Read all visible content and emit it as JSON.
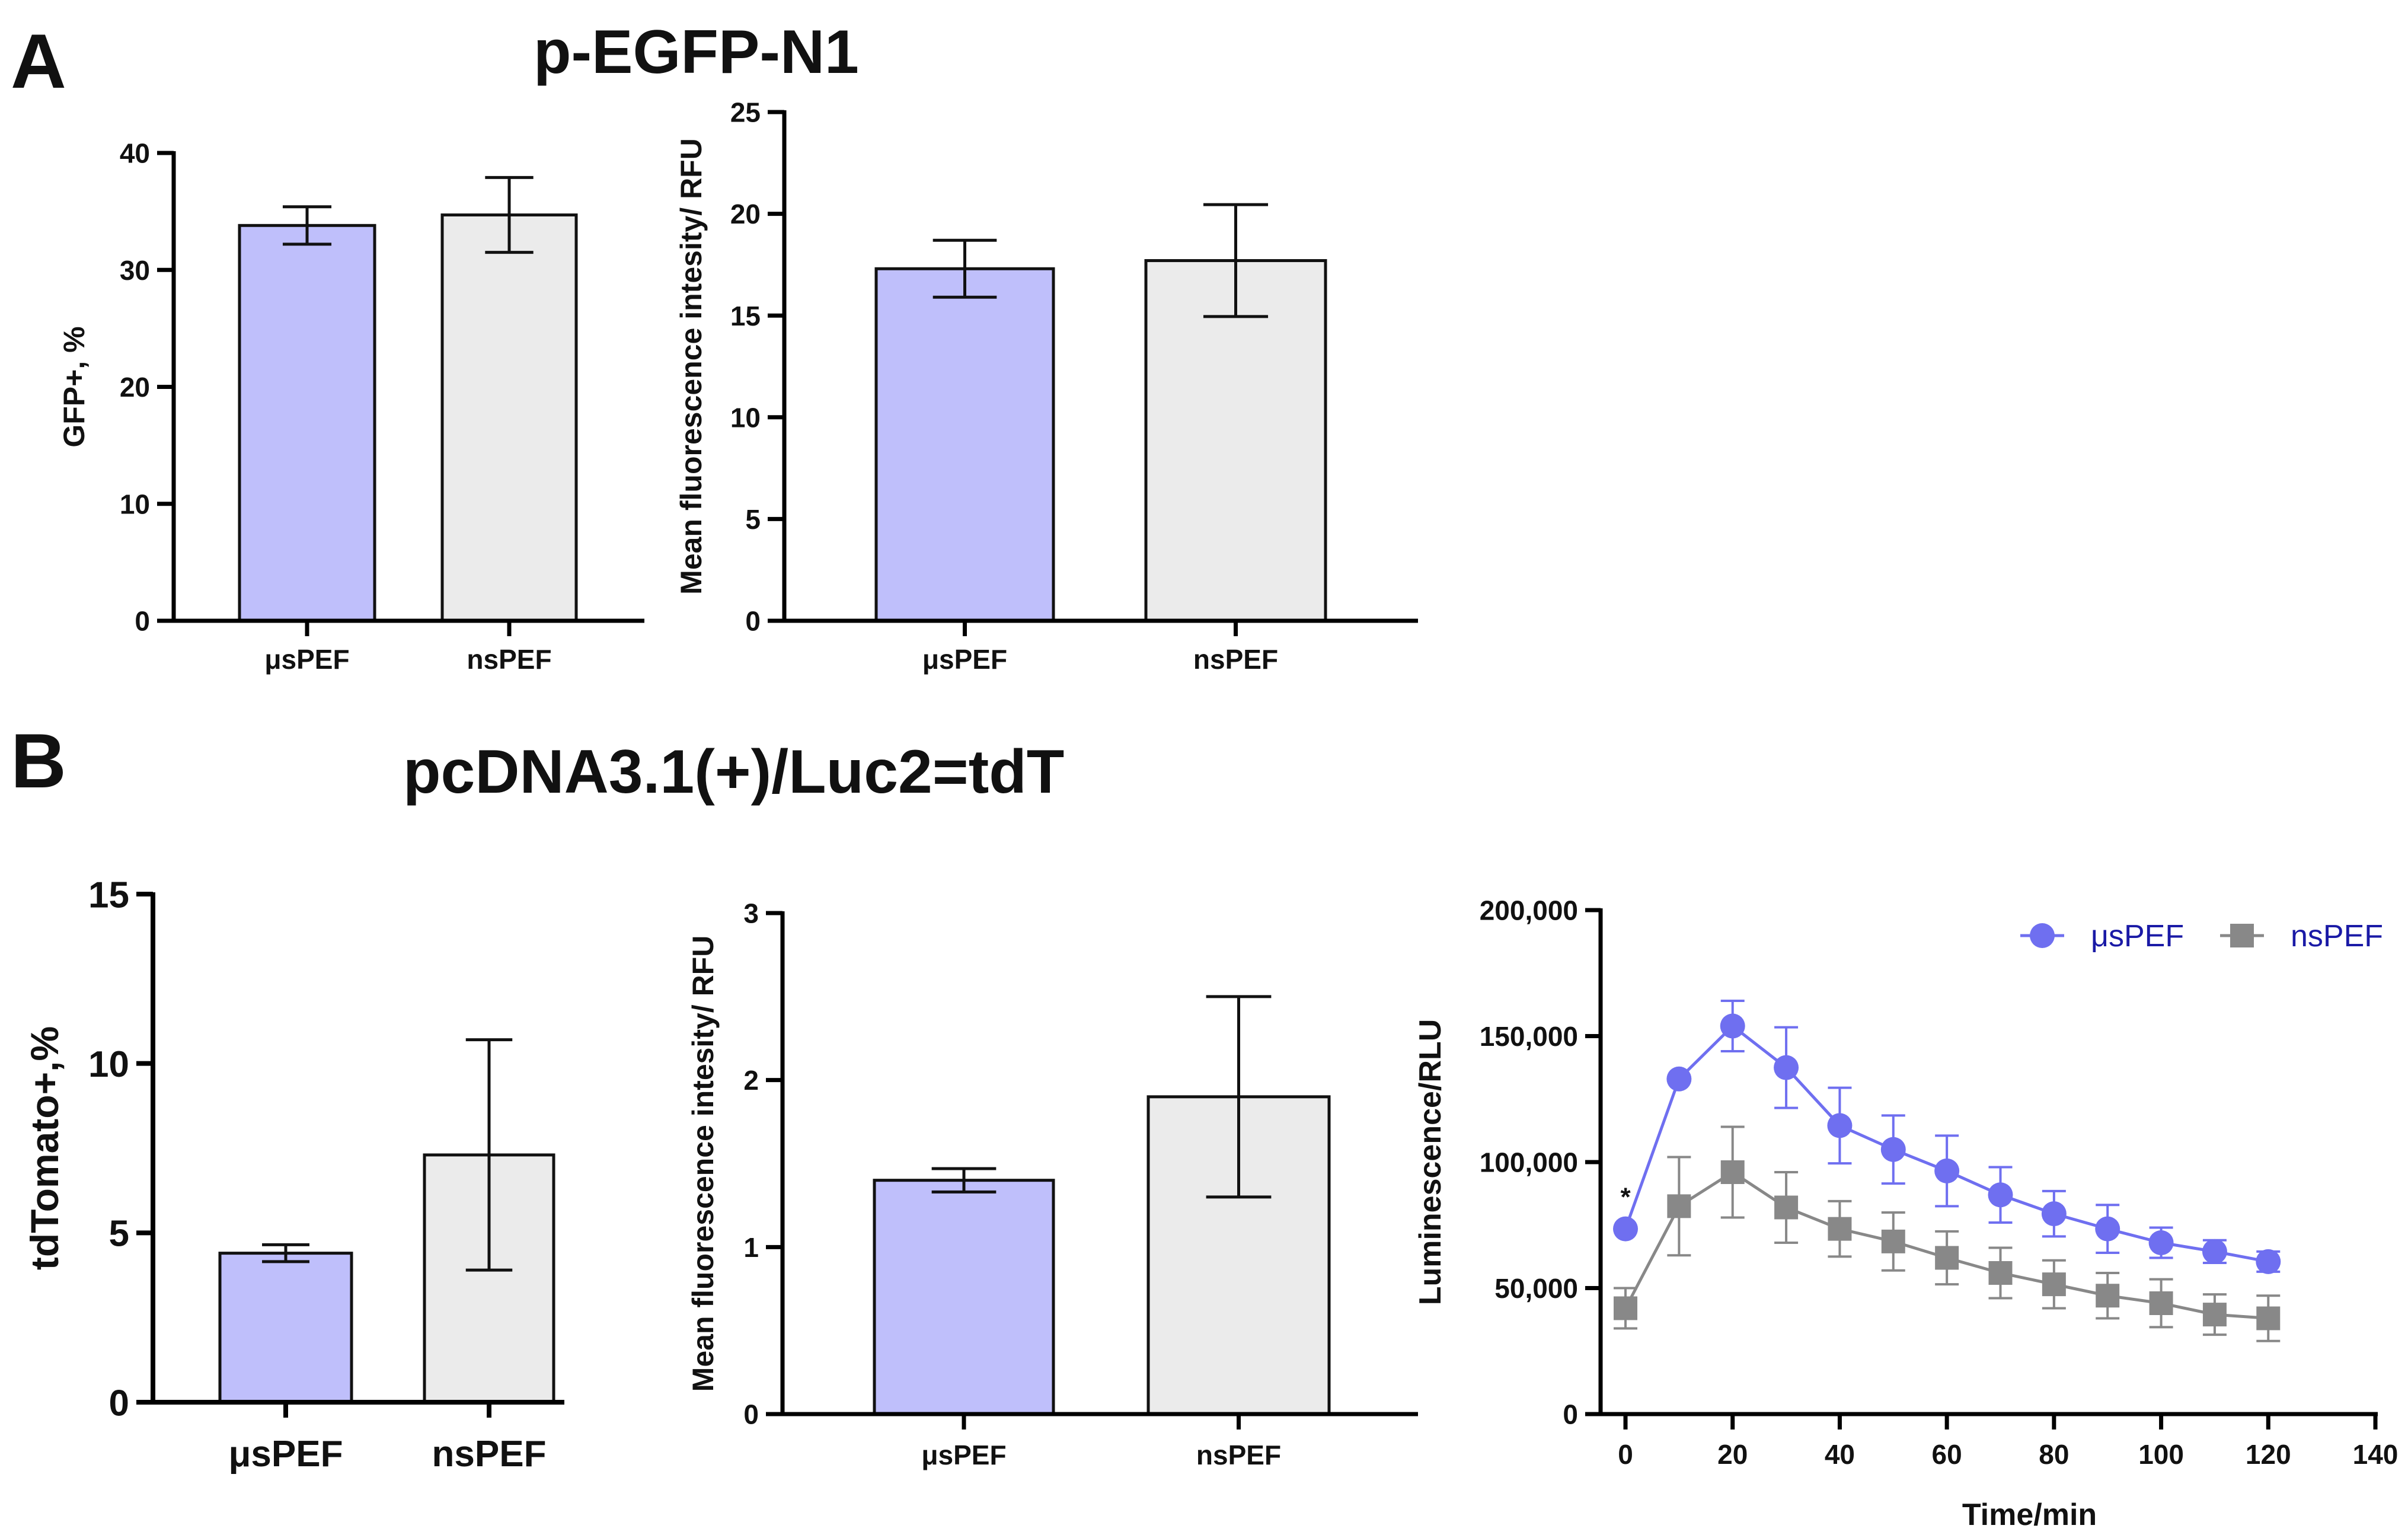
{
  "panel_a": {
    "letter": "A",
    "title": "p-EGFP-N1"
  },
  "panel_b": {
    "letter": "B",
    "title": "pcDNA3.1(+)/Luc2=tdT"
  },
  "colors": {
    "us": "#bfbffb",
    "ns": "#ebebeb",
    "us_line": "#6f6ff0",
    "ns_line": "#888888",
    "axis": "#000000"
  },
  "chart_data": [
    {
      "id": "a1",
      "type": "bar",
      "title": "",
      "xlabel": "",
      "ylabel": "GFP+, %",
      "categories": [
        "μsPEF",
        "nsPEF"
      ],
      "values": [
        33.8,
        34.7
      ],
      "errors": [
        1.6,
        3.2
      ],
      "ylim": [
        0,
        40
      ],
      "yticks": [
        "0",
        "10",
        "20",
        "30",
        "40"
      ],
      "ytick_values": [
        0,
        10,
        20,
        30,
        40
      ]
    },
    {
      "id": "a2",
      "type": "bar",
      "title": "",
      "xlabel": "",
      "ylabel": "Mean fluorescence intesity/ RFU",
      "categories": [
        "μsPEF",
        "nsPEF"
      ],
      "values": [
        17.3,
        17.7
      ],
      "errors": [
        1.4,
        2.75
      ],
      "ylim": [
        0,
        25
      ],
      "yticks": [
        "0",
        "5",
        "10",
        "15",
        "20",
        "25"
      ],
      "ytick_values": [
        0,
        5,
        10,
        15,
        20,
        25
      ]
    },
    {
      "id": "b1",
      "type": "bar",
      "title": "",
      "xlabel": "",
      "ylabel": "tdTomato+,%",
      "categories": [
        "μsPEF",
        "nsPEF"
      ],
      "values": [
        4.4,
        7.3
      ],
      "errors": [
        0.25,
        3.4
      ],
      "ylim": [
        0,
        15
      ],
      "yticks": [
        "0",
        "5",
        "10",
        "15"
      ],
      "ytick_values": [
        0,
        5,
        10,
        15
      ]
    },
    {
      "id": "b2",
      "type": "bar",
      "title": "",
      "xlabel": "",
      "ylabel": "Mean fluorescence intesity/ RFU",
      "categories": [
        "μsPEF",
        "nsPEF"
      ],
      "values": [
        1.4,
        1.9
      ],
      "errors": [
        0.07,
        0.6
      ],
      "ylim": [
        0,
        3
      ],
      "yticks": [
        "0",
        "1",
        "2",
        "3"
      ],
      "ytick_values": [
        0,
        1,
        2,
        3
      ]
    },
    {
      "id": "b3",
      "type": "line",
      "title": "",
      "xlabel": "Time/min",
      "ylabel": "Luminescence/RLU",
      "x": [
        0,
        10,
        20,
        30,
        40,
        50,
        60,
        70,
        80,
        90,
        100,
        110,
        120
      ],
      "series": [
        {
          "name": "μsPEF",
          "marker": "circle",
          "values": [
            73500,
            133000,
            154000,
            137500,
            114500,
            105000,
            96500,
            87000,
            79500,
            73500,
            68000,
            64500,
            60500
          ],
          "errors": [
            0,
            0,
            10000,
            16000,
            15000,
            13500,
            14000,
            11000,
            9000,
            9500,
            6000,
            4500,
            4000
          ]
        },
        {
          "name": "nsPEF",
          "marker": "square",
          "values": [
            42000,
            82500,
            96000,
            82000,
            73500,
            68500,
            62000,
            56000,
            51500,
            47000,
            44000,
            39500,
            38000
          ],
          "errors": [
            8000,
            19500,
            18000,
            14000,
            11000,
            11500,
            10500,
            10000,
            9500,
            9000,
            9500,
            8000,
            9000
          ]
        }
      ],
      "xlim": [
        0,
        140
      ],
      "ylim": [
        0,
        200000
      ],
      "xticks": [
        "0",
        "20",
        "40",
        "60",
        "80",
        "100",
        "120",
        "140"
      ],
      "xtick_values": [
        0,
        20,
        40,
        60,
        80,
        100,
        120,
        140
      ],
      "yticks": [
        "0",
        "50,000",
        "100,000",
        "150,000",
        "200,000"
      ],
      "ytick_values": [
        0,
        50000,
        100000,
        150000,
        200000
      ],
      "annotation": "*",
      "annotation_x": 0,
      "annotation_y": 86000,
      "legend_position": "top-right"
    }
  ]
}
